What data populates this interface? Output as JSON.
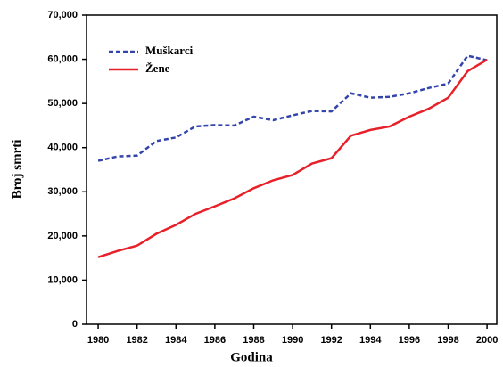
{
  "chart_data": {
    "type": "line",
    "x_label": "Godina",
    "y_label": "Broj smrti",
    "x": [
      1980,
      1981,
      1982,
      1983,
      1984,
      1985,
      1986,
      1987,
      1988,
      1989,
      1990,
      1991,
      1992,
      1993,
      1994,
      1995,
      1996,
      1997,
      1998,
      1999,
      2000
    ],
    "series": [
      {
        "name": "Muškarci",
        "color": "#3344aa",
        "linestyle": "dashed",
        "values": [
          37000,
          38000,
          38200,
          41500,
          42300,
          44800,
          45100,
          45000,
          47000,
          46200,
          47300,
          48300,
          48200,
          52300,
          51300,
          51500,
          52300,
          53500,
          54500,
          60800,
          59800
        ]
      },
      {
        "name": "Žene",
        "color": "#e8202a",
        "linestyle": "solid",
        "values": [
          15200,
          16600,
          17800,
          20500,
          22500,
          25000,
          26700,
          28500,
          30800,
          32600,
          33800,
          36400,
          37600,
          42700,
          44000,
          44800,
          47000,
          48800,
          51300,
          57300,
          59900
        ]
      }
    ],
    "xlim": [
      1979.4,
      2000.5
    ],
    "ylim": [
      0,
      70000
    ],
    "xticks": [
      1980,
      1982,
      1984,
      1986,
      1988,
      1990,
      1992,
      1994,
      1996,
      1998,
      2000
    ],
    "yticks": [
      0,
      {
        "value": 10000,
        "label": "10,000"
      },
      {
        "value": 20000,
        "label": "20,000"
      },
      {
        "value": 30000,
        "label": "30,000"
      },
      {
        "value": 40000,
        "label": "40,000"
      },
      {
        "value": 50000,
        "label": "50,000"
      },
      {
        "value": 60000,
        "label": "60,000"
      },
      {
        "value": 70000,
        "label": "70,000"
      }
    ],
    "legend": "upper left"
  }
}
